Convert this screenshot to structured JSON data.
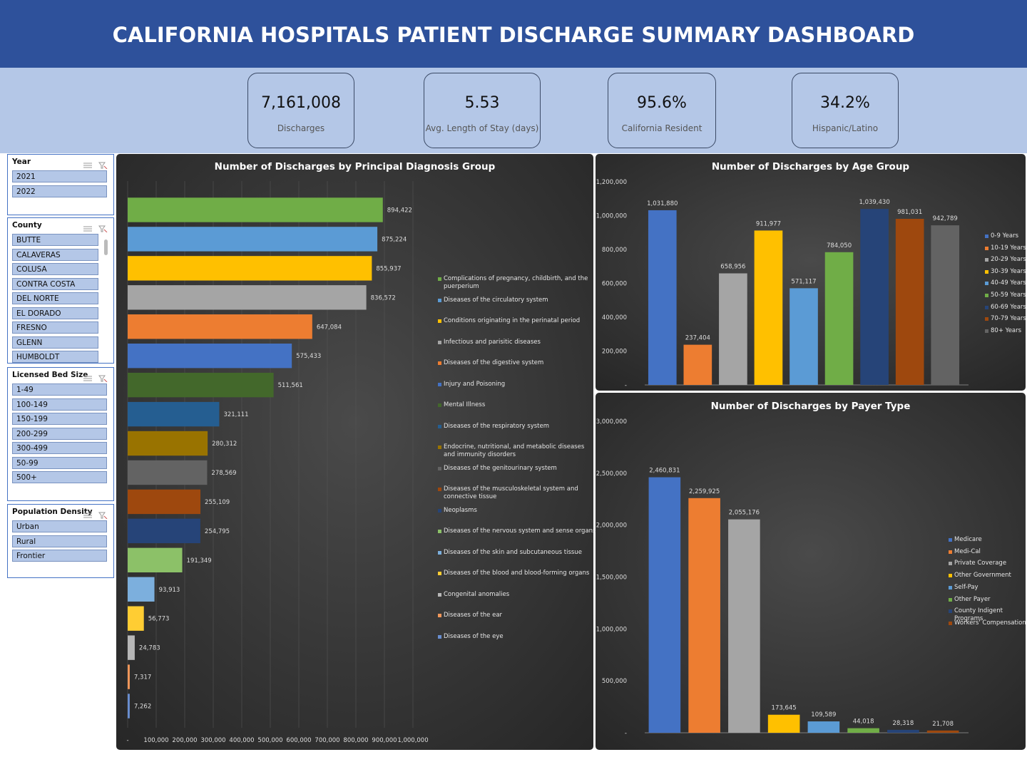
{
  "header": {
    "title": "CALIFORNIA HOSPITALS PATIENT DISCHARGE SUMMARY DASHBOARD"
  },
  "kpis": [
    {
      "value": "7,161,008",
      "label": "Discharges"
    },
    {
      "value": "5.53",
      "label": "Avg. Length of Stay (days)"
    },
    {
      "value": "95.6%",
      "label": "California Resident"
    },
    {
      "value": "34.2%",
      "label": "Hispanic/Latino"
    }
  ],
  "slicers": [
    {
      "title": "Year",
      "items": [
        "2021",
        "2022"
      ]
    },
    {
      "title": "County",
      "items": [
        "BUTTE",
        "CALAVERAS",
        "COLUSA",
        "CONTRA COSTA",
        "DEL NORTE",
        "EL DORADO",
        "FRESNO",
        "GLENN",
        "HUMBOLDT"
      ]
    },
    {
      "title": "Licensed Bed Size",
      "items": [
        "1-49",
        "100-149",
        "150-199",
        "200-299",
        "300-499",
        "50-99",
        "500+"
      ]
    },
    {
      "title": "Population Density",
      "items": [
        "Urban",
        "Rural",
        "Frontier"
      ]
    }
  ],
  "chart_data": [
    {
      "type": "bar",
      "orientation": "horizontal",
      "title": "Number of Discharges by Principal Diagnosis Group",
      "categories": [
        "Complications of pregnancy, childbirth, and the puerperium",
        "Diseases of the circulatory system",
        "Conditions originating in the perinatal period",
        "Infectious and parisitic diseases",
        "Diseases of the digestive system",
        "Injury and Poisoning",
        "Mental Illness",
        "Diseases of the respiratory system",
        "Endocrine, nutritional, and metabolic diseases and immunity disorders",
        "Diseases of the genitourinary system",
        "Diseases of the musculoskeletal system and connective tissue",
        "Neoplasms",
        "Diseases of the nervous system and sense organs",
        "Diseases of the skin and subcutaneous tissue",
        "Diseases of the blood and blood-forming organs",
        "Congenital anomalies",
        "Diseases of the ear",
        "Diseases of the eye"
      ],
      "values": [
        894422,
        875224,
        855937,
        836572,
        647084,
        575433,
        511561,
        321111,
        280312,
        278569,
        255109,
        254795,
        191349,
        93913,
        56773,
        24783,
        7317,
        7262
      ],
      "value_labels": [
        "894,422",
        "875,224",
        "855,937",
        "836,572",
        "647,084",
        "575,433",
        "511,561",
        "321,111",
        "280,312",
        "278,569",
        "255,109",
        "254,795",
        "191,349",
        "93,913",
        "56,773",
        "24,783",
        "7,317",
        "7,262"
      ],
      "colors": [
        "#70ad47",
        "#5b9bd5",
        "#ffc000",
        "#a5a5a5",
        "#ed7d31",
        "#4472c4",
        "#43682b",
        "#255e91",
        "#997300",
        "#636363",
        "#9e480e",
        "#264478",
        "#8cc168",
        "#7cafdd",
        "#ffcd33",
        "#b7b7b7",
        "#f1975a",
        "#698ed0"
      ],
      "xlim": [
        0,
        1000000
      ],
      "xticks": [
        {
          "value": 0,
          "label": "-"
        },
        {
          "value": 100000,
          "label": "100,000"
        },
        {
          "value": 200000,
          "label": "200,000"
        },
        {
          "value": 300000,
          "label": "300,000"
        },
        {
          "value": 400000,
          "label": "400,000"
        },
        {
          "value": 500000,
          "label": "500,000"
        },
        {
          "value": 600000,
          "label": "600,000"
        },
        {
          "value": 700000,
          "label": "700,000"
        },
        {
          "value": 800000,
          "label": "800,000"
        },
        {
          "value": 900000,
          "label": "900,000"
        },
        {
          "value": 1000000,
          "label": "1,000,000"
        }
      ],
      "grid": true,
      "legend": "right"
    },
    {
      "type": "bar",
      "orientation": "vertical",
      "title": "Number of Discharges by Age Group",
      "categories": [
        "0-9 Years",
        "10-19 Years",
        "20-29 Years",
        "30-39 Years",
        "40-49 Years",
        "50-59 Years",
        "60-69 Years",
        "70-79 Years",
        "80+ Years"
      ],
      "values": [
        1031880,
        237404,
        658956,
        911977,
        571117,
        784050,
        1039430,
        981031,
        942789
      ],
      "value_labels": [
        "1,031,880",
        "237,404",
        "658,956",
        "911,977",
        "571,117",
        "784,050",
        "1,039,430",
        "981,031",
        "942,789"
      ],
      "colors": [
        "#4472c4",
        "#ed7d31",
        "#a5a5a5",
        "#ffc000",
        "#5b9bd5",
        "#70ad47",
        "#264478",
        "#9e480e",
        "#636363"
      ],
      "ylim": [
        0,
        1200000
      ],
      "yticks": [
        {
          "value": 0,
          "label": "-"
        },
        {
          "value": 200000,
          "label": "200,000"
        },
        {
          "value": 400000,
          "label": "400,000"
        },
        {
          "value": 600000,
          "label": "600,000"
        },
        {
          "value": 800000,
          "label": "800,000"
        },
        {
          "value": 1000000,
          "label": "1,000,000"
        },
        {
          "value": 1200000,
          "label": "1,200,000"
        }
      ],
      "grid": false,
      "legend": "right"
    },
    {
      "type": "bar",
      "orientation": "vertical",
      "title": "Number of Discharges by Payer Type",
      "categories": [
        "Medicare",
        "Medi-Cal",
        "Private Coverage",
        "Other Government",
        "Self-Pay",
        "Other Payer",
        "County Indigent Programs",
        "Workers' Compensation"
      ],
      "values": [
        2460831,
        2259925,
        2055176,
        173645,
        109589,
        44018,
        28318,
        21708
      ],
      "value_labels": [
        "2,460,831",
        "2,259,925",
        "2,055,176",
        "173,645",
        "109,589",
        "44,018",
        "28,318",
        "21,708"
      ],
      "colors": [
        "#4472c4",
        "#ed7d31",
        "#a5a5a5",
        "#ffc000",
        "#5b9bd5",
        "#70ad47",
        "#264478",
        "#9e480e"
      ],
      "ylim": [
        0,
        3000000
      ],
      "yticks": [
        {
          "value": 0,
          "label": "-"
        },
        {
          "value": 500000,
          "label": "500,000"
        },
        {
          "value": 1000000,
          "label": "1,000,000"
        },
        {
          "value": 1500000,
          "label": "1,500,000"
        },
        {
          "value": 2000000,
          "label": "2,000,000"
        },
        {
          "value": 2500000,
          "label": "2,500,000"
        },
        {
          "value": 3000000,
          "label": "3,000,000"
        }
      ],
      "grid": false,
      "legend": "right"
    }
  ]
}
